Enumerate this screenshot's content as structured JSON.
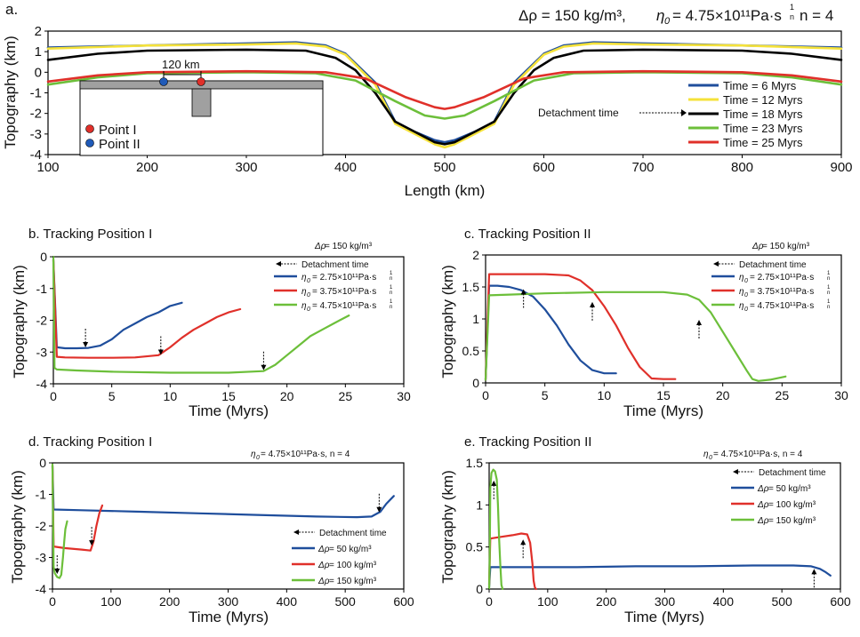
{
  "chart_data": [
    {
      "id": "a",
      "panel_label": "a.",
      "type": "line",
      "title_parts": {
        "drho": "Δρ = 150 kg/m³,",
        "eta_sym": "η",
        "eta_sub": "0",
        "eta_val": "= 4.75×10¹¹Pa·s",
        "exp_num": "1",
        "exp_den": "n",
        "n": "n = 4"
      },
      "xlabel": "Length (km)",
      "ylabel": "Topography (km)",
      "xlim": [
        100,
        900
      ],
      "ylim": [
        -4,
        2
      ],
      "xticks": [
        "100",
        "200",
        "300",
        "400",
        "500",
        "600",
        "700",
        "800",
        "900"
      ],
      "yticks": [
        "2",
        "1",
        "0",
        "-1",
        "-2",
        "-3",
        "-4"
      ],
      "series": [
        {
          "name": "Time = 6 Myrs",
          "color": "#1f4e9c",
          "x": [
            100,
            200,
            300,
            350,
            380,
            400,
            430,
            450,
            470,
            490,
            500,
            510,
            530,
            550,
            570,
            600,
            620,
            650,
            700,
            800,
            900
          ],
          "y": [
            1.2,
            1.3,
            1.4,
            1.45,
            1.3,
            0.9,
            -0.5,
            -2.4,
            -2.9,
            -3.3,
            -3.4,
            -3.3,
            -2.9,
            -2.4,
            -0.5,
            0.9,
            1.3,
            1.45,
            1.4,
            1.3,
            1.2
          ]
        },
        {
          "name": "Time = 12 Myrs",
          "color": "#f5e23a",
          "x": [
            100,
            200,
            300,
            350,
            380,
            400,
            430,
            450,
            470,
            490,
            500,
            510,
            530,
            550,
            570,
            600,
            620,
            650,
            700,
            800,
            900
          ],
          "y": [
            1.15,
            1.3,
            1.35,
            1.4,
            1.25,
            0.85,
            -0.6,
            -2.5,
            -3.0,
            -3.5,
            -3.65,
            -3.5,
            -3.0,
            -2.5,
            -0.6,
            0.85,
            1.25,
            1.4,
            1.35,
            1.3,
            1.15
          ]
        },
        {
          "name": "Time = 18 Myrs",
          "color": "#000000",
          "x": [
            100,
            150,
            200,
            300,
            360,
            390,
            410,
            430,
            450,
            470,
            490,
            500,
            510,
            530,
            550,
            570,
            590,
            610,
            640,
            700,
            800,
            850,
            900
          ],
          "y": [
            0.6,
            0.9,
            1.05,
            1.1,
            1.05,
            0.7,
            0.1,
            -1.0,
            -2.4,
            -2.9,
            -3.4,
            -3.5,
            -3.4,
            -2.9,
            -2.4,
            -1.0,
            0.1,
            0.7,
            1.05,
            1.1,
            1.05,
            0.9,
            0.6
          ]
        },
        {
          "name": "Time = 23 Myrs",
          "color": "#6cbf3a",
          "x": [
            100,
            150,
            200,
            300,
            370,
            410,
            450,
            480,
            500,
            520,
            550,
            590,
            630,
            700,
            800,
            850,
            900
          ],
          "y": [
            -0.6,
            -0.25,
            -0.05,
            0.0,
            -0.05,
            -0.4,
            -1.4,
            -2.1,
            -2.25,
            -2.1,
            -1.4,
            -0.4,
            -0.05,
            0.0,
            -0.05,
            -0.25,
            -0.6
          ]
        },
        {
          "name": "Time = 25 Myrs",
          "color": "#e0302a",
          "x": [
            100,
            150,
            200,
            300,
            380,
            420,
            460,
            490,
            500,
            510,
            540,
            580,
            620,
            700,
            800,
            850,
            900
          ],
          "y": [
            -0.45,
            -0.15,
            0.0,
            0.05,
            0.0,
            -0.3,
            -1.2,
            -1.7,
            -1.78,
            -1.7,
            -1.2,
            -0.3,
            0.0,
            0.05,
            0.0,
            -0.15,
            -0.45
          ]
        }
      ],
      "annotation": "Detachment time",
      "inset": {
        "scale_label": "120 km",
        "point_i": "Point I",
        "point_ii": "Point II",
        "point_i_color": "#e0302a",
        "point_ii_color": "#1f5ab8"
      }
    },
    {
      "id": "b",
      "type": "line",
      "title": "b. Tracking Position I",
      "subtitle_parts": {
        "prefix": "Δρ",
        "rest": " = 150 kg/m³"
      },
      "xlabel": "Time (Myrs)",
      "ylabel": "Topography (km)",
      "xlim": [
        0,
        30
      ],
      "ylim": [
        -4,
        0
      ],
      "xticks": [
        "0",
        "5",
        "10",
        "15",
        "20",
        "25",
        "30"
      ],
      "yticks": [
        "0",
        "-1",
        "-2",
        "-3",
        "-4"
      ],
      "legend_detach": "Detachment time",
      "legend_eta": {
        "eta": "η",
        "sub": "0",
        "exp_num": "1",
        "exp_den": "n"
      },
      "series": [
        {
          "name": "= 2.75×10¹¹Pa·s",
          "color": "#1f4e9c",
          "x": [
            0,
            0.3,
            1,
            2,
            3,
            4,
            5,
            6,
            7,
            8,
            9,
            10,
            11
          ],
          "y": [
            -0.1,
            -2.85,
            -2.88,
            -2.88,
            -2.87,
            -2.8,
            -2.6,
            -2.3,
            -2.1,
            -1.9,
            -1.75,
            -1.55,
            -1.45
          ]
        },
        {
          "name": "= 3.75×10¹¹Pa·s",
          "color": "#e0302a",
          "x": [
            0,
            0.3,
            1,
            3,
            5,
            7,
            9,
            10,
            11,
            12,
            13,
            14,
            15,
            16
          ],
          "y": [
            -0.1,
            -3.15,
            -3.17,
            -3.18,
            -3.18,
            -3.17,
            -3.1,
            -2.85,
            -2.55,
            -2.3,
            -2.1,
            -1.9,
            -1.75,
            -1.65
          ]
        },
        {
          "name": "= 4.75×10¹¹Pa·s",
          "color": "#6cbf3a",
          "x": [
            0,
            0.1,
            0.3,
            2,
            5,
            10,
            15,
            18,
            19,
            20,
            21,
            22,
            23,
            24,
            25.3
          ],
          "y": [
            0,
            -3.5,
            -3.55,
            -3.58,
            -3.62,
            -3.65,
            -3.65,
            -3.6,
            -3.4,
            -3.1,
            -2.8,
            -2.5,
            -2.3,
            -2.1,
            -1.85
          ]
        }
      ],
      "arrows": [
        {
          "x": 2.75,
          "y": -2.88
        },
        {
          "x": 9.2,
          "y": -3.12
        },
        {
          "x": 18,
          "y": -3.6
        }
      ]
    },
    {
      "id": "c",
      "type": "line",
      "title": "c. Tracking Position II",
      "subtitle_parts": {
        "prefix": "Δρ",
        "rest": " = 150 kg/m³"
      },
      "xlabel": "Time (Myrs)",
      "ylabel": "Topography (km)",
      "xlim": [
        0,
        30
      ],
      "ylim": [
        0,
        2
      ],
      "xticks": [
        "0",
        "5",
        "10",
        "15",
        "20",
        "25",
        "30"
      ],
      "yticks": [
        "2",
        "1.5",
        "1",
        "0.5",
        "0"
      ],
      "legend_detach": "Detachment time",
      "legend_eta": {
        "eta": "η",
        "sub": "0",
        "exp_num": "1",
        "exp_den": "n"
      },
      "series": [
        {
          "name": "= 2.75×10¹¹Pa·s",
          "color": "#1f4e9c",
          "x": [
            0,
            0.3,
            1,
            2,
            3,
            4,
            5,
            6,
            7,
            8,
            9,
            10,
            11
          ],
          "y": [
            0.05,
            1.52,
            1.52,
            1.5,
            1.45,
            1.35,
            1.15,
            0.9,
            0.6,
            0.35,
            0.2,
            0.15,
            0.15
          ]
        },
        {
          "name": "= 3.75×10¹¹Pa·s",
          "color": "#e0302a",
          "x": [
            0,
            0.3,
            2,
            5,
            7,
            8,
            9,
            10,
            11,
            12,
            13,
            14,
            15,
            16
          ],
          "y": [
            0.05,
            1.7,
            1.7,
            1.7,
            1.68,
            1.6,
            1.45,
            1.2,
            0.9,
            0.55,
            0.25,
            0.07,
            0.06,
            0.06
          ]
        },
        {
          "name": "= 4.75×10¹¹Pa·s",
          "color": "#6cbf3a",
          "x": [
            0,
            0.3,
            2,
            5,
            10,
            15,
            17,
            18,
            19,
            20,
            21,
            22,
            22.5,
            23,
            24,
            25.3
          ],
          "y": [
            0.05,
            1.37,
            1.38,
            1.4,
            1.42,
            1.42,
            1.38,
            1.3,
            1.1,
            0.8,
            0.5,
            0.2,
            0.06,
            0.03,
            0.05,
            0.1
          ]
        }
      ],
      "arrows": [
        {
          "x": 3.2,
          "y": 1.48
        },
        {
          "x": 9,
          "y": 1.28
        },
        {
          "x": 18,
          "y": 1.0
        }
      ]
    },
    {
      "id": "d",
      "type": "line",
      "title": "d. Tracking Position I",
      "subtitle_parts": {
        "eta": "η",
        "sub": "0",
        "rest": " = 4.75×10¹¹Pa·s, n = 4"
      },
      "xlabel": "Time (Myrs)",
      "ylabel": "Topography (km)",
      "xlim": [
        0,
        600
      ],
      "ylim": [
        -4,
        0
      ],
      "xticks": [
        "0",
        "100",
        "200",
        "300",
        "400",
        "500",
        "600"
      ],
      "yticks": [
        "0",
        "-1",
        "-2",
        "-3",
        "-4"
      ],
      "legend_detach": "Detachment time",
      "legend_drho": "Δρ",
      "series": [
        {
          "name": "= 50 kg/m³",
          "color": "#1f4e9c",
          "x": [
            0,
            2,
            50,
            150,
            250,
            350,
            450,
            520,
            545,
            560,
            570,
            583
          ],
          "y": [
            -0.1,
            -1.48,
            -1.5,
            -1.55,
            -1.6,
            -1.65,
            -1.7,
            -1.72,
            -1.7,
            -1.55,
            -1.3,
            -1.05
          ]
        },
        {
          "name": "= 100 kg/m³",
          "color": "#e0302a",
          "x": [
            0,
            2,
            20,
            50,
            65,
            70,
            75,
            80,
            85
          ],
          "y": [
            -0.1,
            -2.65,
            -2.7,
            -2.75,
            -2.78,
            -2.5,
            -2.0,
            -1.6,
            -1.35
          ]
        },
        {
          "name": "= 150 kg/m³",
          "color": "#6cbf3a",
          "x": [
            0,
            2,
            4,
            8,
            12,
            15,
            18,
            20,
            22,
            25
          ],
          "y": [
            -0.05,
            -3.3,
            -3.5,
            -3.62,
            -3.65,
            -3.55,
            -3.0,
            -2.5,
            -2.1,
            -1.85
          ]
        }
      ],
      "arrows": [
        {
          "x": 558,
          "y": -1.6
        },
        {
          "x": 67,
          "y": -2.65
        },
        {
          "x": 8,
          "y": -3.55
        }
      ]
    },
    {
      "id": "e",
      "type": "line",
      "title": "e. Tracking Position II",
      "subtitle_parts": {
        "eta": "η",
        "sub": "0",
        "rest": " = 4.75×10¹¹Pa·s, n = 4"
      },
      "xlabel": "Time (Myrs)",
      "ylabel": "Topography (km)",
      "xlim": [
        0,
        600
      ],
      "ylim": [
        0,
        1.5
      ],
      "xticks": [
        "0",
        "100",
        "200",
        "300",
        "400",
        "500",
        "600"
      ],
      "yticks": [
        "1.5",
        "1",
        "0.5",
        "0"
      ],
      "legend_detach": "Detachment time",
      "legend_drho": "Δρ",
      "series": [
        {
          "name": "= 50 kg/m³",
          "color": "#1f4e9c",
          "x": [
            0,
            2,
            50,
            150,
            250,
            350,
            450,
            520,
            550,
            565,
            575,
            583
          ],
          "y": [
            0.02,
            0.26,
            0.26,
            0.26,
            0.27,
            0.27,
            0.28,
            0.28,
            0.27,
            0.24,
            0.2,
            0.16
          ]
        },
        {
          "name": "= 100 kg/m³",
          "color": "#e0302a",
          "x": [
            0,
            2,
            20,
            40,
            55,
            65,
            70,
            74,
            76,
            78,
            80
          ],
          "y": [
            0.05,
            0.6,
            0.62,
            0.64,
            0.66,
            0.65,
            0.55,
            0.3,
            0.1,
            0.02,
            0.0
          ]
        },
        {
          "name": "= 150 kg/m³",
          "color": "#6cbf3a",
          "x": [
            0,
            1,
            2,
            4,
            7,
            10,
            13,
            15,
            17,
            19,
            21,
            23
          ],
          "y": [
            0,
            0.4,
            1.2,
            1.38,
            1.42,
            1.4,
            1.3,
            1.0,
            0.6,
            0.3,
            0.05,
            0.0
          ]
        }
      ],
      "arrows": [
        {
          "x": 555,
          "y": 0.25
        },
        {
          "x": 58,
          "y": 0.6
        },
        {
          "x": 8,
          "y": 1.3
        }
      ]
    }
  ]
}
